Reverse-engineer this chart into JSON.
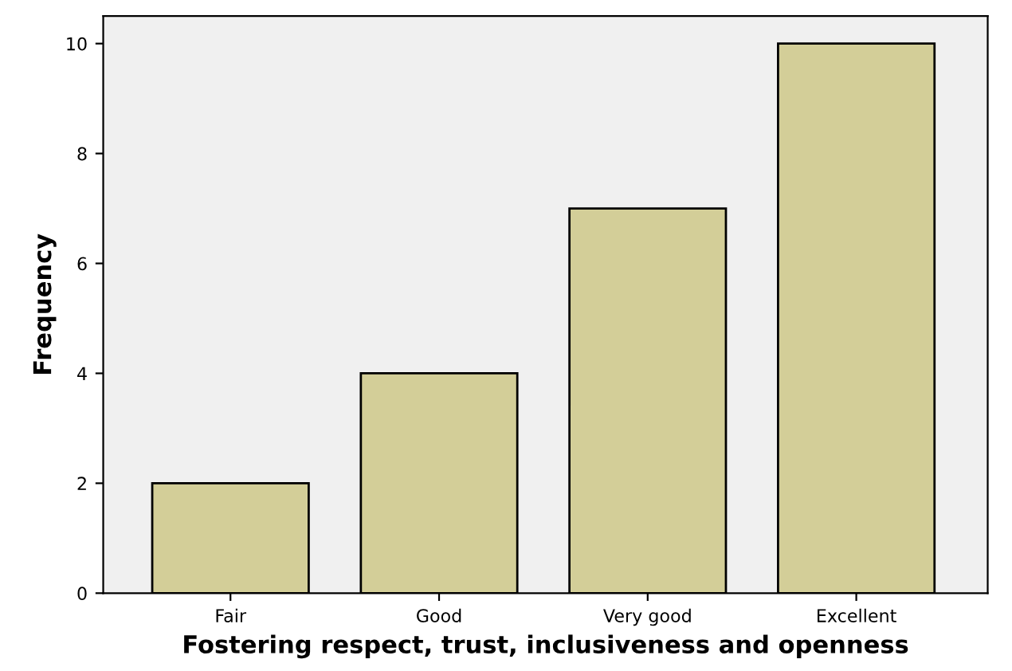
{
  "chart_data": {
    "type": "bar",
    "xlabel": "Fostering respect, trust, inclusiveness and openness",
    "ylabel": "Frequency",
    "categories": [
      "Fair",
      "Good",
      "Very good",
      "Excellent"
    ],
    "values": [
      2,
      4,
      7,
      10
    ],
    "color": "#d3ce98",
    "ylim": [
      0,
      10.5
    ],
    "yticks": [
      0,
      2,
      4,
      6,
      8,
      10
    ],
    "grid": false
  }
}
